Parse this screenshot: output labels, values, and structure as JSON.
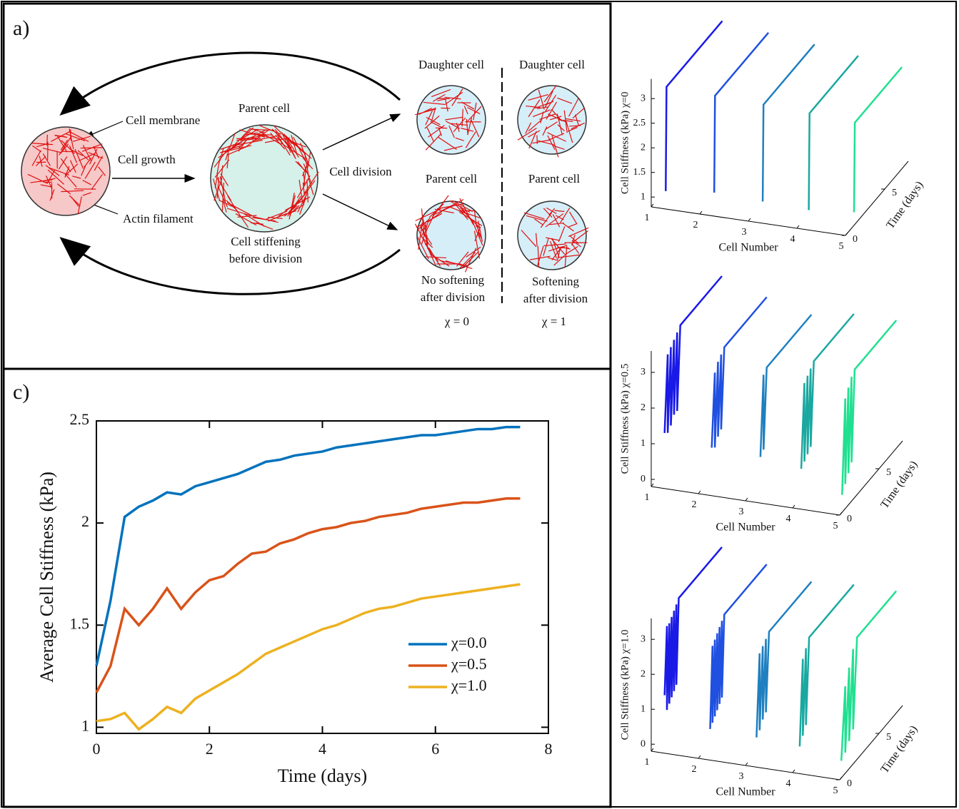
{
  "panel_a": {
    "label": "a)",
    "cell_membrane": "Cell membrane",
    "cell_growth": "Cell growth",
    "actin_filament": "Actin filament",
    "parent_cell_top": "Parent cell",
    "stiffening_1": "Cell stiffening",
    "stiffening_2": "before division",
    "cell_division": "Cell division",
    "daughter_left": "Daughter cell",
    "daughter_right": "Daughter cell",
    "parent_left": "Parent cell",
    "parent_right": "Parent cell",
    "no_softening_1": "No softening",
    "no_softening_2": "after division",
    "softening_1": "Softening",
    "softening_2": "after division",
    "chi_left": "χ = 0",
    "chi_right": "χ = 1"
  },
  "panel_c_label": "c)",
  "chart_data": [
    {
      "type": "line",
      "xlabel": "Time (days)",
      "ylabel": "Average Cell Stiffness (kPa)",
      "x": [
        0,
        0.25,
        0.5,
        0.75,
        1,
        1.25,
        1.5,
        1.75,
        2,
        2.25,
        2.5,
        2.75,
        3,
        3.25,
        3.5,
        3.75,
        4,
        4.25,
        4.5,
        4.75,
        5,
        5.25,
        5.5,
        5.75,
        6,
        6.25,
        6.5,
        6.75,
        7,
        7.25,
        7.5
      ],
      "series": [
        {
          "name": "χ=0.0",
          "color": "#0072bd",
          "values": [
            1.3,
            1.62,
            2.03,
            2.08,
            2.11,
            2.15,
            2.14,
            2.18,
            2.2,
            2.22,
            2.24,
            2.27,
            2.3,
            2.31,
            2.33,
            2.34,
            2.35,
            2.37,
            2.38,
            2.39,
            2.4,
            2.41,
            2.42,
            2.43,
            2.43,
            2.44,
            2.45,
            2.46,
            2.46,
            2.47,
            2.47
          ]
        },
        {
          "name": "χ=0.5",
          "color": "#d95319",
          "values": [
            1.17,
            1.3,
            1.58,
            1.5,
            1.58,
            1.68,
            1.58,
            1.66,
            1.72,
            1.74,
            1.8,
            1.85,
            1.86,
            1.9,
            1.92,
            1.95,
            1.97,
            1.98,
            2.0,
            2.01,
            2.03,
            2.04,
            2.05,
            2.07,
            2.08,
            2.09,
            2.1,
            2.1,
            2.11,
            2.12,
            2.12
          ]
        },
        {
          "name": "χ=1.0",
          "color": "#edb120",
          "values": [
            1.03,
            1.04,
            1.07,
            0.99,
            1.04,
            1.1,
            1.07,
            1.14,
            1.18,
            1.22,
            1.26,
            1.31,
            1.36,
            1.39,
            1.42,
            1.45,
            1.48,
            1.5,
            1.53,
            1.56,
            1.58,
            1.59,
            1.61,
            1.63,
            1.64,
            1.65,
            1.66,
            1.67,
            1.68,
            1.69,
            1.7
          ]
        }
      ],
      "xlim": [
        0,
        8
      ],
      "ylim": [
        0.97,
        2.5
      ],
      "xticks": [
        0,
        2,
        4,
        6,
        8
      ],
      "yticks": [
        1,
        1.5,
        2,
        2.5
      ],
      "legend": "lower right"
    },
    {
      "type": "line3d",
      "xlabel": "Cell Number",
      "ylabel": "Time (days)",
      "zlabel": "Cell Stiffness (kPa) χ=0",
      "xlim": [
        1,
        5
      ],
      "ylim": [
        0,
        8
      ],
      "zlim": [
        0.8,
        3.4
      ],
      "xticks": [
        1,
        2,
        3,
        4,
        5
      ],
      "yticks": [
        0,
        5
      ],
      "zticks": [
        1,
        1.5,
        2,
        2.5,
        3
      ],
      "series": [
        {
          "color": "#1a1ae6",
          "cell": 1.25,
          "time": [
            0.3,
            0.4,
            7.5
          ],
          "values": [
            1.1,
            3.2,
            3.2
          ]
        },
        {
          "color": "#2050e0",
          "cell": 2.2,
          "time": [
            0.6,
            0.7,
            7.5
          ],
          "values": [
            1.15,
            3.1,
            3.1
          ]
        },
        {
          "color": "#1f80c0",
          "cell": 3.15,
          "time": [
            0.9,
            1.0,
            7.5
          ],
          "values": [
            1.05,
            3.0,
            3.0
          ]
        },
        {
          "color": "#1aa8a0",
          "cell": 4.05,
          "time": [
            1.2,
            1.3,
            7.5
          ],
          "values": [
            0.95,
            2.9,
            2.9
          ]
        },
        {
          "color": "#20e090",
          "cell": 4.95,
          "time": [
            1.4,
            1.5,
            7.5
          ],
          "values": [
            1.0,
            2.8,
            2.8
          ]
        }
      ]
    },
    {
      "type": "line3d",
      "xlabel": "Cell Number",
      "ylabel": "Time (days)",
      "zlabel": "Cell Stiffness (kPa) χ=0.5",
      "xlim": [
        1,
        5
      ],
      "ylim": [
        0,
        8
      ],
      "zlim": [
        -0.2,
        3.6
      ],
      "xticks": [
        1,
        2,
        3,
        4,
        5
      ],
      "yticks": [
        0,
        5
      ],
      "zticks": [
        0,
        1,
        2,
        3
      ],
      "series": [
        {
          "color": "#1a1ae6",
          "cell": 1.25,
          "time": [
            0.2,
            0.6,
            0.6,
            1.0,
            1.0,
            1.4,
            1.4,
            1.8,
            1.8,
            2.2,
            7.5
          ],
          "values": [
            1.3,
            3.4,
            1.2,
            3.5,
            1.3,
            3.6,
            1.5,
            3.7,
            1.5,
            3.8,
            3.8
          ]
        },
        {
          "color": "#2050e0",
          "cell": 2.2,
          "time": [
            0.5,
            0.9,
            0.9,
            1.3,
            1.3,
            1.7,
            1.7,
            2.1,
            7.5
          ],
          "values": [
            1.0,
            3.0,
            0.9,
            3.2,
            1.1,
            3.3,
            1.2,
            3.4,
            3.4
          ]
        },
        {
          "color": "#1f80c0",
          "cell": 3.15,
          "time": [
            1.0,
            1.4,
            1.4,
            1.8,
            7.5
          ],
          "values": [
            0.8,
            3.0,
            0.9,
            3.1,
            3.1
          ]
        },
        {
          "color": "#1aa8a0",
          "cell": 4.05,
          "time": [
            0.8,
            1.2,
            1.2,
            1.6,
            1.6,
            2.0,
            2.0,
            2.4,
            7.5
          ],
          "values": [
            0.7,
            3.0,
            0.8,
            3.1,
            0.9,
            3.2,
            1.0,
            3.3,
            3.3
          ]
        },
        {
          "color": "#20e090",
          "cell": 4.95,
          "time": [
            0.6,
            1.0,
            1.0,
            1.4,
            1.4,
            1.8,
            1.8,
            2.2,
            7.5
          ],
          "values": [
            0.2,
            2.8,
            0.4,
            3.0,
            0.6,
            3.2,
            0.8,
            3.3,
            3.3
          ]
        }
      ]
    },
    {
      "type": "line3d",
      "xlabel": "Cell Number",
      "ylabel": "Time (days)",
      "zlabel": "Cell Stiffness (kPa) χ=1.0",
      "xlim": [
        1,
        5
      ],
      "ylim": [
        0,
        8
      ],
      "zlim": [
        -0.2,
        3.6
      ],
      "xticks": [
        1,
        2,
        3,
        4,
        5
      ],
      "yticks": [
        0,
        5
      ],
      "zticks": [
        0,
        1,
        2,
        3
      ],
      "series": [
        {
          "color": "#1a1ae6",
          "cell": 1.25,
          "time": [
            0.2,
            0.5,
            0.5,
            0.8,
            0.8,
            1.1,
            1.1,
            1.4,
            1.4,
            1.7,
            1.7,
            2.0,
            7.5
          ],
          "values": [
            1.4,
            3.3,
            0.9,
            3.3,
            1.0,
            3.4,
            1.1,
            3.5,
            1.2,
            3.6,
            1.3,
            3.7,
            3.7
          ]
        },
        {
          "color": "#2050e0",
          "cell": 2.2,
          "time": [
            0.3,
            0.6,
            0.6,
            0.9,
            0.9,
            1.2,
            1.2,
            1.5,
            1.5,
            1.8,
            1.8,
            2.1,
            7.5
          ],
          "values": [
            0.6,
            2.9,
            0.7,
            3.0,
            0.8,
            3.1,
            0.9,
            3.2,
            1.0,
            3.3,
            1.1,
            3.4,
            3.4
          ]
        },
        {
          "color": "#1f80c0",
          "cell": 3.15,
          "time": [
            0.5,
            0.9,
            0.9,
            1.3,
            1.3,
            1.7,
            1.7,
            2.1,
            7.5
          ],
          "values": [
            0.5,
            2.8,
            0.6,
            2.9,
            0.8,
            3.0,
            0.9,
            3.1,
            3.1
          ]
        },
        {
          "color": "#1aa8a0",
          "cell": 4.05,
          "time": [
            0.6,
            1.0,
            1.0,
            1.4,
            1.4,
            1.8,
            7.5
          ],
          "values": [
            0.4,
            2.8,
            0.6,
            3.0,
            0.8,
            3.2,
            3.2
          ]
        },
        {
          "color": "#20e090",
          "cell": 4.95,
          "time": [
            0.5,
            1.0,
            1.0,
            1.5,
            1.5,
            2.0,
            2.0,
            2.5,
            7.5
          ],
          "values": [
            0.2,
            2.2,
            0.3,
            2.6,
            0.5,
            3.0,
            0.7,
            3.2,
            3.2
          ]
        }
      ]
    }
  ]
}
